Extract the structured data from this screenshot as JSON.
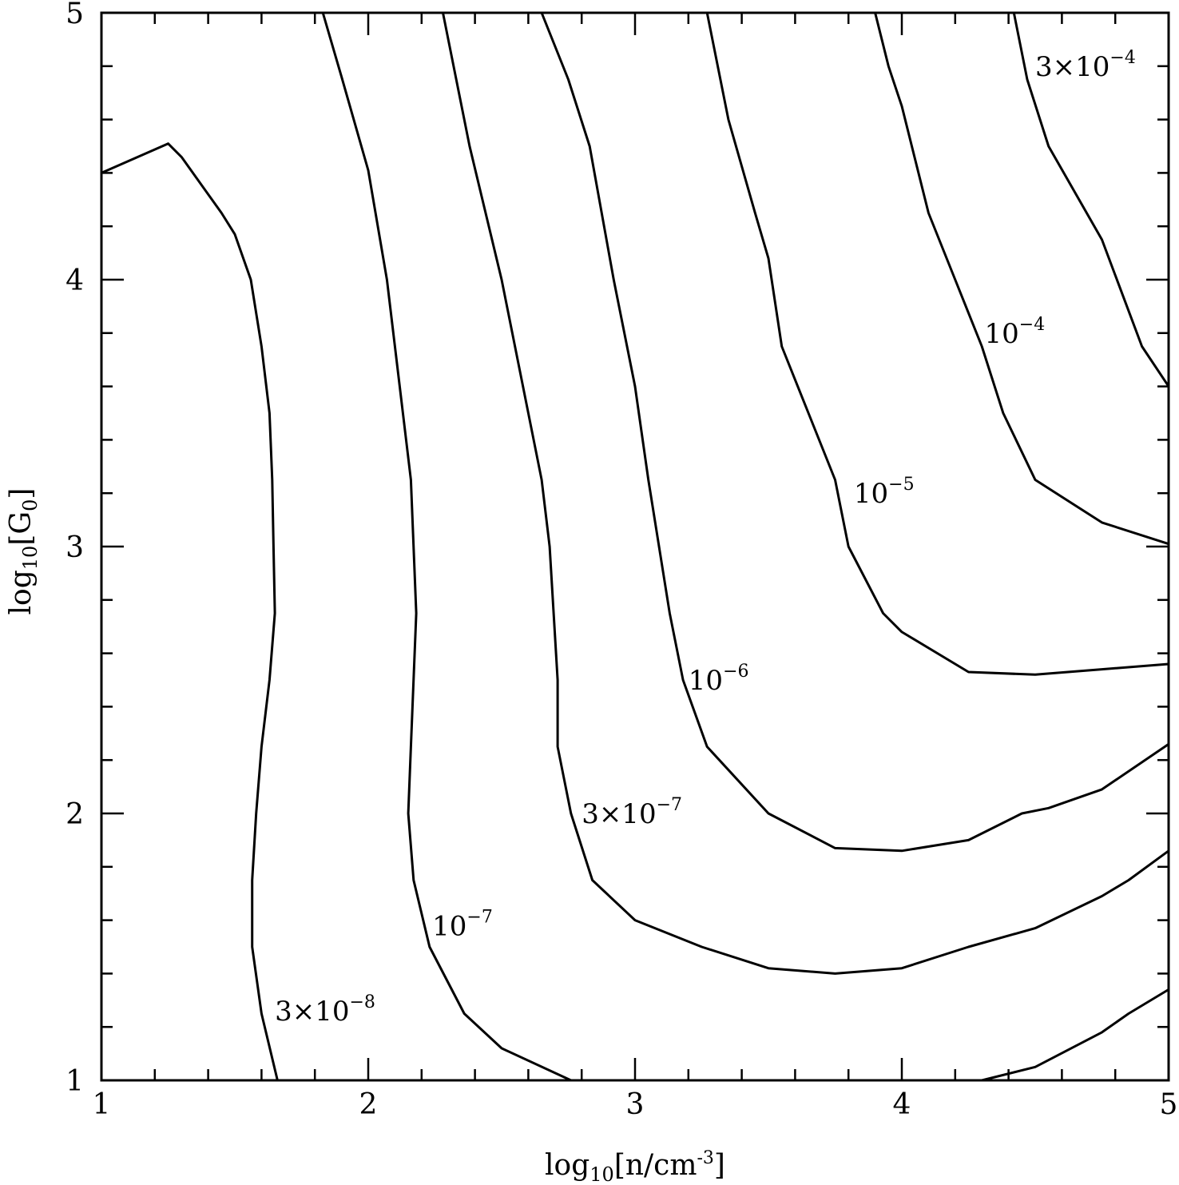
{
  "chart_data": {
    "type": "line",
    "xlim": [
      1,
      5
    ],
    "ylim": [
      1,
      5
    ],
    "x_ticks": [
      1,
      2,
      3,
      4,
      5
    ],
    "y_ticks": [
      1,
      2,
      3,
      4,
      5
    ],
    "x_tick_labels": [
      "1",
      "2",
      "3",
      "4",
      "5"
    ],
    "y_tick_labels": [
      "1",
      "2",
      "3",
      "4",
      "5"
    ],
    "x_minor_step": 0.2,
    "y_minor_step": 0.2,
    "xlabel": {
      "base": "log",
      "sub": "10",
      "mid": "[n/cm",
      "sup": "-3",
      "end": "]"
    },
    "ylabel": {
      "base": "log",
      "sub": "10",
      "mid": "[G",
      "sub2": "0",
      "end": "]"
    },
    "grid": false,
    "series": [
      {
        "name": "3×10-8",
        "label_base": "3×10",
        "label_exp": "-8",
        "label_at": [
          1.65,
          1.26
        ],
        "points": [
          [
            1.0,
            4.4
          ],
          [
            1.25,
            4.51
          ],
          [
            1.3,
            4.46
          ],
          [
            1.45,
            4.25
          ],
          [
            1.5,
            4.17
          ],
          [
            1.56,
            4.0
          ],
          [
            1.6,
            3.75
          ],
          [
            1.63,
            3.5
          ],
          [
            1.64,
            3.25
          ],
          [
            1.645,
            3.0
          ],
          [
            1.65,
            2.75
          ],
          [
            1.63,
            2.5
          ],
          [
            1.6,
            2.25
          ],
          [
            1.58,
            2.0
          ],
          [
            1.565,
            1.75
          ],
          [
            1.565,
            1.5
          ],
          [
            1.6,
            1.25
          ],
          [
            1.66,
            1.0
          ]
        ]
      },
      {
        "name": "10-7",
        "label_base": "10",
        "label_exp": "-7",
        "label_at": [
          2.24,
          1.58
        ],
        "points": [
          [
            1.83,
            5.0
          ],
          [
            1.9,
            4.76
          ],
          [
            2.0,
            4.41
          ],
          [
            2.07,
            4.0
          ],
          [
            2.13,
            3.5
          ],
          [
            2.16,
            3.25
          ],
          [
            2.18,
            2.75
          ],
          [
            2.16,
            2.25
          ],
          [
            2.15,
            2.0
          ],
          [
            2.17,
            1.75
          ],
          [
            2.23,
            1.5
          ],
          [
            2.36,
            1.25
          ],
          [
            2.5,
            1.12
          ],
          [
            2.76,
            1.0
          ]
        ]
      },
      {
        "name": "3×10-7",
        "label_base": "3×10",
        "label_exp": "-7",
        "label_at": [
          2.8,
          2.0
        ],
        "points": [
          [
            2.28,
            5.0
          ],
          [
            2.38,
            4.5
          ],
          [
            2.5,
            4.0
          ],
          [
            2.6,
            3.5
          ],
          [
            2.65,
            3.25
          ],
          [
            2.68,
            3.0
          ],
          [
            2.71,
            2.5
          ],
          [
            2.71,
            2.25
          ],
          [
            2.76,
            2.0
          ],
          [
            2.84,
            1.75
          ],
          [
            3.0,
            1.6
          ],
          [
            3.25,
            1.5
          ],
          [
            3.5,
            1.42
          ],
          [
            3.75,
            1.4
          ],
          [
            4.0,
            1.42
          ],
          [
            4.25,
            1.5
          ],
          [
            4.5,
            1.57
          ],
          [
            4.75,
            1.69
          ],
          [
            4.85,
            1.75
          ],
          [
            5.0,
            1.86
          ]
        ]
      },
      {
        "name": "10-6",
        "label_base": "10",
        "label_exp": "-6",
        "label_at": [
          3.2,
          2.5
        ],
        "points": [
          [
            2.65,
            5.0
          ],
          [
            2.75,
            4.75
          ],
          [
            2.83,
            4.5
          ],
          [
            2.92,
            4.0
          ],
          [
            3.0,
            3.6
          ],
          [
            3.05,
            3.25
          ],
          [
            3.13,
            2.75
          ],
          [
            3.18,
            2.5
          ],
          [
            3.27,
            2.25
          ],
          [
            3.5,
            2.0
          ],
          [
            3.75,
            1.87
          ],
          [
            4.0,
            1.86
          ],
          [
            4.25,
            1.9
          ],
          [
            4.45,
            2.0
          ],
          [
            4.55,
            2.02
          ],
          [
            4.75,
            2.09
          ],
          [
            5.0,
            2.26
          ]
        ]
      },
      {
        "name": "10-5",
        "label_base": "10",
        "label_exp": "-5",
        "label_at": [
          3.82,
          3.2
        ],
        "points": [
          [
            3.27,
            5.0
          ],
          [
            3.35,
            4.6
          ],
          [
            3.45,
            4.25
          ],
          [
            3.5,
            4.08
          ],
          [
            3.55,
            3.75
          ],
          [
            3.65,
            3.5
          ],
          [
            3.75,
            3.25
          ],
          [
            3.8,
            3.0
          ],
          [
            3.93,
            2.75
          ],
          [
            4.0,
            2.68
          ],
          [
            4.25,
            2.53
          ],
          [
            4.5,
            2.52
          ],
          [
            4.75,
            2.54
          ],
          [
            5.0,
            2.56
          ]
        ]
      },
      {
        "name": "10-4",
        "label_base": "10",
        "label_exp": "-4",
        "label_at": [
          4.31,
          3.8
        ],
        "points": [
          [
            3.9,
            5.0
          ],
          [
            3.95,
            4.8
          ],
          [
            4.0,
            4.65
          ],
          [
            4.1,
            4.25
          ],
          [
            4.2,
            4.0
          ],
          [
            4.3,
            3.75
          ],
          [
            4.38,
            3.5
          ],
          [
            4.5,
            3.25
          ],
          [
            4.75,
            3.09
          ],
          [
            5.0,
            3.01
          ]
        ]
      },
      {
        "name": "3×10-4",
        "label_base": "3×10",
        "label_exp": "-4",
        "label_at": [
          4.5,
          4.8
        ],
        "points": [
          [
            4.42,
            5.0
          ],
          [
            4.47,
            4.75
          ],
          [
            4.55,
            4.5
          ],
          [
            4.75,
            4.15
          ],
          [
            4.9,
            3.75
          ],
          [
            5.0,
            3.6
          ]
        ]
      },
      {
        "name": "",
        "points": [
          [
            4.3,
            1.0
          ],
          [
            4.5,
            1.05
          ],
          [
            4.75,
            1.18
          ],
          [
            4.85,
            1.25
          ],
          [
            5.0,
            1.34
          ]
        ]
      }
    ]
  }
}
